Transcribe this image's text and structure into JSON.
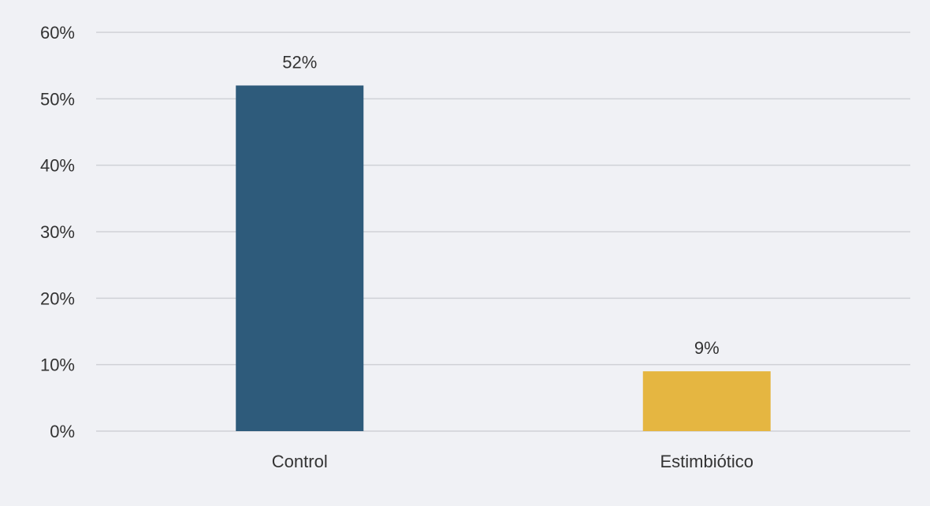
{
  "chart_data": {
    "type": "bar",
    "categories": [
      "Control",
      "Estimbiótico"
    ],
    "values": [
      52,
      9
    ],
    "data_labels": [
      "52%",
      "9%"
    ],
    "colors": [
      "#2e5b7b",
      "#e5b641"
    ],
    "ylim": [
      0,
      60
    ],
    "yticks": [
      0,
      10,
      20,
      30,
      40,
      50,
      60
    ],
    "ytick_labels": [
      "0%",
      "10%",
      "20%",
      "30%",
      "40%",
      "50%",
      "60%"
    ],
    "grid": true,
    "legend": "none",
    "title": "",
    "xlabel": "",
    "ylabel": ""
  }
}
